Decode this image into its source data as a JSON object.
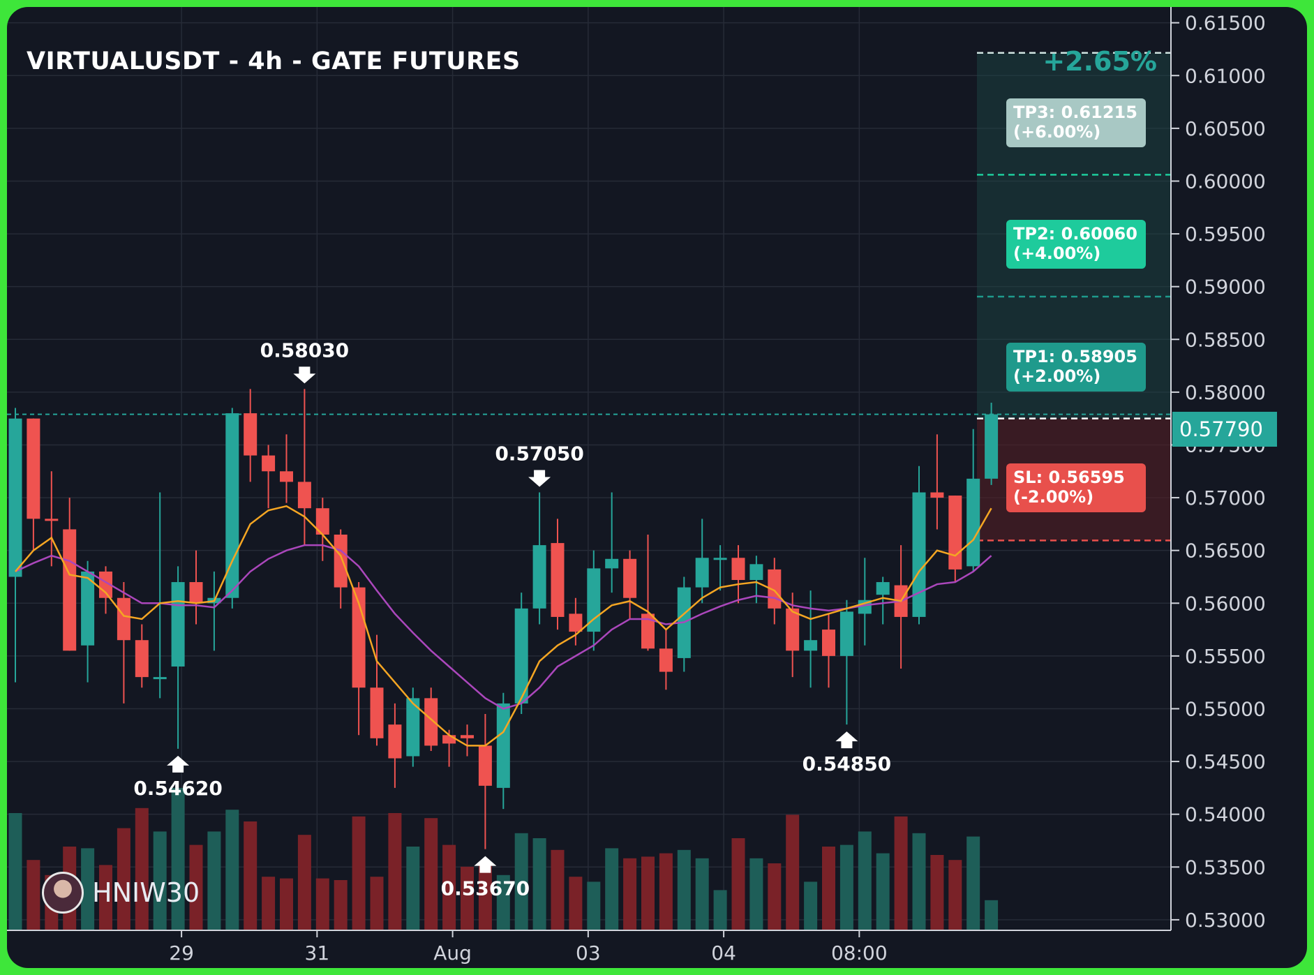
{
  "title": "VIRTUALUSDT - 4h - GATE FUTURES",
  "change_pct": "+2.65%",
  "current_price": "0.57790",
  "watermark": "HNIW30",
  "targets": [
    {
      "label": "TP3: 0.61215\n(+6.00%)",
      "color": "#a8c8c4",
      "price": 0.61215
    },
    {
      "label": "TP2: 0.60060\n(+4.00%)",
      "color": "#1ecb9c",
      "price": 0.6006
    },
    {
      "label": "TP1: 0.58905\n(+2.00%)",
      "color": "#1f9a8c",
      "price": 0.58905
    }
  ],
  "stop_loss": {
    "label": "SL: 0.56595\n(-2.00%)",
    "color": "#e8504c",
    "price": 0.56595
  },
  "entry_price": 0.5775,
  "colors": {
    "up": "#26a69a",
    "down": "#ef5350",
    "ma_fast": "#f5a623",
    "ma_slow": "#ab47bc",
    "background": "#131722"
  },
  "chart_data": {
    "type": "candlestick",
    "title": "VIRTUALUSDT - 4h - GATE FUTURES",
    "x_tick_labels": [
      "29",
      "31",
      "Aug",
      "03",
      "04",
      "08:00"
    ],
    "y_tick_labels": [
      "0.61500",
      "0.61000",
      "0.60500",
      "0.60000",
      "0.59500",
      "0.59000",
      "0.58500",
      "0.58000",
      "0.57500",
      "0.57000",
      "0.56500",
      "0.56000",
      "0.55500",
      "0.55000",
      "0.54500",
      "0.54000",
      "0.53500",
      "0.53000"
    ],
    "ylim": [
      0.529,
      0.6165
    ],
    "grid": true,
    "candles": [
      {
        "o": 0.5625,
        "h": 0.5785,
        "l": 0.5525,
        "c": 0.5775
      },
      {
        "o": 0.5775,
        "h": 0.5775,
        "l": 0.565,
        "c": 0.568
      },
      {
        "o": 0.568,
        "h": 0.5725,
        "l": 0.5635,
        "c": 0.5678
      },
      {
        "o": 0.567,
        "h": 0.57,
        "l": 0.5555,
        "c": 0.5555
      },
      {
        "o": 0.556,
        "h": 0.564,
        "l": 0.5525,
        "c": 0.563
      },
      {
        "o": 0.563,
        "h": 0.5635,
        "l": 0.559,
        "c": 0.5605
      },
      {
        "o": 0.5605,
        "h": 0.562,
        "l": 0.5505,
        "c": 0.5565
      },
      {
        "o": 0.5565,
        "h": 0.558,
        "l": 0.552,
        "c": 0.553
      },
      {
        "o": 0.553,
        "h": 0.5705,
        "l": 0.551,
        "c": 0.553
      },
      {
        "o": 0.554,
        "h": 0.5635,
        "l": 0.5462,
        "c": 0.562
      },
      {
        "o": 0.562,
        "h": 0.565,
        "l": 0.558,
        "c": 0.56
      },
      {
        "o": 0.56,
        "h": 0.563,
        "l": 0.5555,
        "c": 0.5605
      },
      {
        "o": 0.5605,
        "h": 0.5785,
        "l": 0.5595,
        "c": 0.578
      },
      {
        "o": 0.578,
        "h": 0.5803,
        "l": 0.5715,
        "c": 0.574
      },
      {
        "o": 0.574,
        "h": 0.575,
        "l": 0.569,
        "c": 0.5725
      },
      {
        "o": 0.5725,
        "h": 0.576,
        "l": 0.5695,
        "c": 0.5715
      },
      {
        "o": 0.5715,
        "h": 0.5803,
        "l": 0.5655,
        "c": 0.569
      },
      {
        "o": 0.569,
        "h": 0.57,
        "l": 0.564,
        "c": 0.5665
      },
      {
        "o": 0.5665,
        "h": 0.567,
        "l": 0.5595,
        "c": 0.5615
      },
      {
        "o": 0.5615,
        "h": 0.562,
        "l": 0.5475,
        "c": 0.552
      },
      {
        "o": 0.552,
        "h": 0.557,
        "l": 0.5465,
        "c": 0.5472
      },
      {
        "o": 0.5485,
        "h": 0.5505,
        "l": 0.5425,
        "c": 0.5453
      },
      {
        "o": 0.5455,
        "h": 0.552,
        "l": 0.5445,
        "c": 0.551
      },
      {
        "o": 0.551,
        "h": 0.552,
        "l": 0.546,
        "c": 0.5465
      },
      {
        "o": 0.5475,
        "h": 0.548,
        "l": 0.5445,
        "c": 0.5467
      },
      {
        "o": 0.5475,
        "h": 0.5485,
        "l": 0.5455,
        "c": 0.5472
      },
      {
        "o": 0.5465,
        "h": 0.5495,
        "l": 0.5367,
        "c": 0.5427
      },
      {
        "o": 0.5425,
        "h": 0.5515,
        "l": 0.5405,
        "c": 0.5505
      },
      {
        "o": 0.5505,
        "h": 0.561,
        "l": 0.5495,
        "c": 0.5595
      },
      {
        "o": 0.5595,
        "h": 0.5705,
        "l": 0.558,
        "c": 0.5655
      },
      {
        "o": 0.5657,
        "h": 0.568,
        "l": 0.5575,
        "c": 0.5587
      },
      {
        "o": 0.559,
        "h": 0.5605,
        "l": 0.556,
        "c": 0.5573
      },
      {
        "o": 0.5573,
        "h": 0.565,
        "l": 0.5555,
        "c": 0.5633
      },
      {
        "o": 0.5633,
        "h": 0.5705,
        "l": 0.561,
        "c": 0.5642
      },
      {
        "o": 0.5642,
        "h": 0.565,
        "l": 0.5585,
        "c": 0.5605
      },
      {
        "o": 0.559,
        "h": 0.5665,
        "l": 0.5555,
        "c": 0.5557
      },
      {
        "o": 0.5557,
        "h": 0.5575,
        "l": 0.5518,
        "c": 0.5535
      },
      {
        "o": 0.5548,
        "h": 0.5625,
        "l": 0.5535,
        "c": 0.5615
      },
      {
        "o": 0.5615,
        "h": 0.568,
        "l": 0.56,
        "c": 0.5643
      },
      {
        "o": 0.5643,
        "h": 0.5655,
        "l": 0.5612,
        "c": 0.5643
      },
      {
        "o": 0.5643,
        "h": 0.5655,
        "l": 0.56,
        "c": 0.5622
      },
      {
        "o": 0.5622,
        "h": 0.5645,
        "l": 0.56,
        "c": 0.5637
      },
      {
        "o": 0.5632,
        "h": 0.5643,
        "l": 0.558,
        "c": 0.5595
      },
      {
        "o": 0.5595,
        "h": 0.561,
        "l": 0.553,
        "c": 0.5555
      },
      {
        "o": 0.5555,
        "h": 0.5612,
        "l": 0.552,
        "c": 0.5565
      },
      {
        "o": 0.5575,
        "h": 0.559,
        "l": 0.552,
        "c": 0.555
      },
      {
        "o": 0.555,
        "h": 0.5603,
        "l": 0.5485,
        "c": 0.5592
      },
      {
        "o": 0.559,
        "h": 0.5643,
        "l": 0.556,
        "c": 0.5603
      },
      {
        "o": 0.5608,
        "h": 0.5625,
        "l": 0.558,
        "c": 0.562
      },
      {
        "o": 0.5617,
        "h": 0.5655,
        "l": 0.5538,
        "c": 0.5587
      },
      {
        "o": 0.5587,
        "h": 0.573,
        "l": 0.558,
        "c": 0.5705
      },
      {
        "o": 0.5705,
        "h": 0.576,
        "l": 0.567,
        "c": 0.57
      },
      {
        "o": 0.5702,
        "h": 0.5702,
        "l": 0.562,
        "c": 0.5632
      },
      {
        "o": 0.5635,
        "h": 0.5765,
        "l": 0.563,
        "c": 0.5718
      },
      {
        "o": 0.5718,
        "h": 0.579,
        "l": 0.5712,
        "c": 0.5779
      }
    ],
    "ma_fast": [
      0.563,
      0.565,
      0.5662,
      0.5627,
      0.5624,
      0.561,
      0.5588,
      0.5585,
      0.56,
      0.5602,
      0.56,
      0.5602,
      0.564,
      0.5675,
      0.5688,
      0.5692,
      0.5682,
      0.5665,
      0.5645,
      0.56,
      0.5545,
      0.5525,
      0.5505,
      0.549,
      0.5475,
      0.5465,
      0.5465,
      0.5478,
      0.551,
      0.5545,
      0.556,
      0.557,
      0.5585,
      0.5598,
      0.5602,
      0.5592,
      0.5575,
      0.559,
      0.5605,
      0.5615,
      0.5618,
      0.562,
      0.5612,
      0.5592,
      0.5585,
      0.559,
      0.5595,
      0.56,
      0.5605,
      0.5602,
      0.563,
      0.565,
      0.5645,
      0.566,
      0.569
    ],
    "ma_slow": [
      0.563,
      0.5638,
      0.5645,
      0.564,
      0.563,
      0.562,
      0.561,
      0.56,
      0.56,
      0.5598,
      0.5598,
      0.5596,
      0.5612,
      0.563,
      0.5642,
      0.565,
      0.5655,
      0.5655,
      0.565,
      0.5635,
      0.5612,
      0.559,
      0.5572,
      0.5555,
      0.554,
      0.5525,
      0.551,
      0.55,
      0.5505,
      0.552,
      0.554,
      0.555,
      0.556,
      0.5575,
      0.5585,
      0.5585,
      0.558,
      0.5582,
      0.559,
      0.5597,
      0.5603,
      0.5607,
      0.5605,
      0.5598,
      0.5595,
      0.5593,
      0.5595,
      0.5598,
      0.56,
      0.5602,
      0.561,
      0.5618,
      0.562,
      0.563,
      0.5645
    ],
    "volume": [
      0.7,
      0.42,
      0.33,
      0.5,
      0.49,
      0.39,
      0.61,
      0.73,
      0.59,
      0.85,
      0.51,
      0.59,
      0.72,
      0.65,
      0.32,
      0.31,
      0.57,
      0.31,
      0.3,
      0.68,
      0.32,
      0.7,
      0.5,
      0.67,
      0.51,
      0.38,
      0.4,
      0.33,
      0.58,
      0.55,
      0.48,
      0.32,
      0.29,
      0.49,
      0.43,
      0.44,
      0.46,
      0.48,
      0.43,
      0.24,
      0.55,
      0.43,
      0.4,
      0.69,
      0.29,
      0.5,
      0.51,
      0.59,
      0.46,
      0.68,
      0.58,
      0.45,
      0.42,
      0.56,
      0.18
    ],
    "annotations": [
      {
        "label": "0.58030",
        "index": 16,
        "price": 0.5803,
        "kind": "high"
      },
      {
        "label": "0.57050",
        "index": 29,
        "price": 0.5705,
        "kind": "high"
      },
      {
        "label": "0.54620",
        "index": 9,
        "price": 0.5462,
        "kind": "low"
      },
      {
        "label": "0.53670",
        "index": 26,
        "price": 0.5367,
        "kind": "low"
      },
      {
        "label": "0.54850",
        "index": 46,
        "price": 0.5485,
        "kind": "low"
      }
    ]
  }
}
